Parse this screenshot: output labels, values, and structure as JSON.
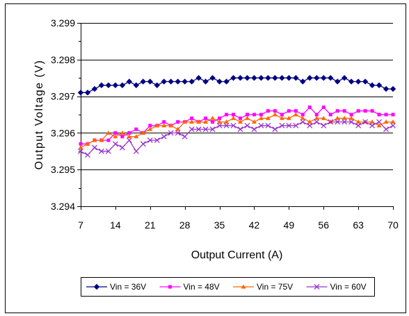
{
  "chart_data": {
    "type": "line",
    "title": "",
    "xlabel": "Output Current (A)",
    "ylabel": "Output Voltage (V)",
    "xlim": [
      7,
      70
    ],
    "ylim": [
      3.294,
      3.299
    ],
    "x_ticks": [
      7,
      14,
      21,
      28,
      35,
      42,
      49,
      56,
      63,
      70
    ],
    "y_ticks": [
      3.294,
      3.295,
      3.296,
      3.297,
      3.298,
      3.299
    ],
    "y_tick_labels": [
      "3.294",
      "3.295",
      "3.296",
      "3.297",
      "3.298",
      "3.299"
    ],
    "grid": "horizontal",
    "legend_position": "bottom",
    "x": [
      7,
      8.4,
      9.8,
      11.2,
      12.6,
      14,
      15.4,
      16.8,
      18.2,
      19.6,
      21,
      22.4,
      23.8,
      25.2,
      26.6,
      28,
      29.4,
      30.8,
      32.2,
      33.6,
      35,
      36.4,
      37.8,
      39.2,
      40.6,
      42,
      43.4,
      44.8,
      46.2,
      47.6,
      49,
      50.4,
      51.8,
      53.2,
      54.6,
      56,
      57.4,
      58.8,
      60.2,
      61.6,
      63,
      64.4,
      65.8,
      67.2,
      68.6,
      70
    ],
    "series": [
      {
        "name": "Vin = 36V",
        "color": "#000080",
        "marker": "diamond",
        "values": [
          3.2971,
          3.2971,
          3.2972,
          3.2973,
          3.2973,
          3.2973,
          3.2973,
          3.2974,
          3.2973,
          3.2974,
          3.2974,
          3.2973,
          3.2974,
          3.2974,
          3.2974,
          3.2974,
          3.2974,
          3.2975,
          3.2974,
          3.2975,
          3.2974,
          3.2974,
          3.2975,
          3.2975,
          3.2975,
          3.2975,
          3.2975,
          3.2975,
          3.2975,
          3.2975,
          3.2975,
          3.2975,
          3.2974,
          3.2975,
          3.2975,
          3.2975,
          3.2975,
          3.2974,
          3.2975,
          3.2974,
          3.2974,
          3.2974,
          3.2973,
          3.2973,
          3.2972,
          3.2972
        ]
      },
      {
        "name": "Vin = 48V",
        "color": "#ff00ff",
        "marker": "square",
        "values": [
          3.2957,
          3.2957,
          3.2958,
          3.2958,
          3.2958,
          3.296,
          3.2959,
          3.296,
          3.2961,
          3.296,
          3.2962,
          3.2962,
          3.2963,
          3.2962,
          3.2963,
          3.2963,
          3.2964,
          3.2963,
          3.2964,
          3.2963,
          3.2964,
          3.2965,
          3.2965,
          3.2964,
          3.2965,
          3.2965,
          3.2965,
          3.2966,
          3.2966,
          3.2965,
          3.2966,
          3.2966,
          3.2965,
          3.2967,
          3.2965,
          3.2967,
          3.2965,
          3.2966,
          3.2966,
          3.2965,
          3.2966,
          3.2966,
          3.2966,
          3.2965,
          3.2965,
          3.2965
        ]
      },
      {
        "name": "Vin = 75V",
        "color": "#ff6600",
        "marker": "triangle",
        "values": [
          3.2956,
          3.2957,
          3.2958,
          3.2958,
          3.296,
          3.2959,
          3.296,
          3.2959,
          3.2959,
          3.296,
          3.2961,
          3.2962,
          3.2962,
          3.2962,
          3.2961,
          3.2963,
          3.2963,
          3.2963,
          3.2963,
          3.2964,
          3.2963,
          3.2963,
          3.2964,
          3.2963,
          3.2964,
          3.2963,
          3.2964,
          3.2964,
          3.2965,
          3.2964,
          3.2964,
          3.2965,
          3.2964,
          3.2963,
          3.2964,
          3.2964,
          3.2963,
          3.2964,
          3.2964,
          3.2964,
          3.2963,
          3.2963,
          3.2963,
          3.2962,
          3.2963,
          3.2963
        ]
      },
      {
        "name": "Vin = 60V",
        "color": "#9933cc",
        "marker": "x",
        "values": [
          3.2955,
          3.2954,
          3.2956,
          3.2955,
          3.2955,
          3.2957,
          3.2956,
          3.2958,
          3.2955,
          3.2957,
          3.2958,
          3.2958,
          3.2959,
          3.296,
          3.296,
          3.2959,
          3.2961,
          3.2961,
          3.2961,
          3.2961,
          3.2962,
          3.2962,
          3.2962,
          3.2961,
          3.2962,
          3.2961,
          3.2962,
          3.2962,
          3.2961,
          3.2962,
          3.2962,
          3.2962,
          3.2963,
          3.2962,
          3.2963,
          3.2962,
          3.2963,
          3.2963,
          3.2963,
          3.2963,
          3.2962,
          3.2963,
          3.2962,
          3.2963,
          3.2961,
          3.2962
        ]
      }
    ]
  }
}
